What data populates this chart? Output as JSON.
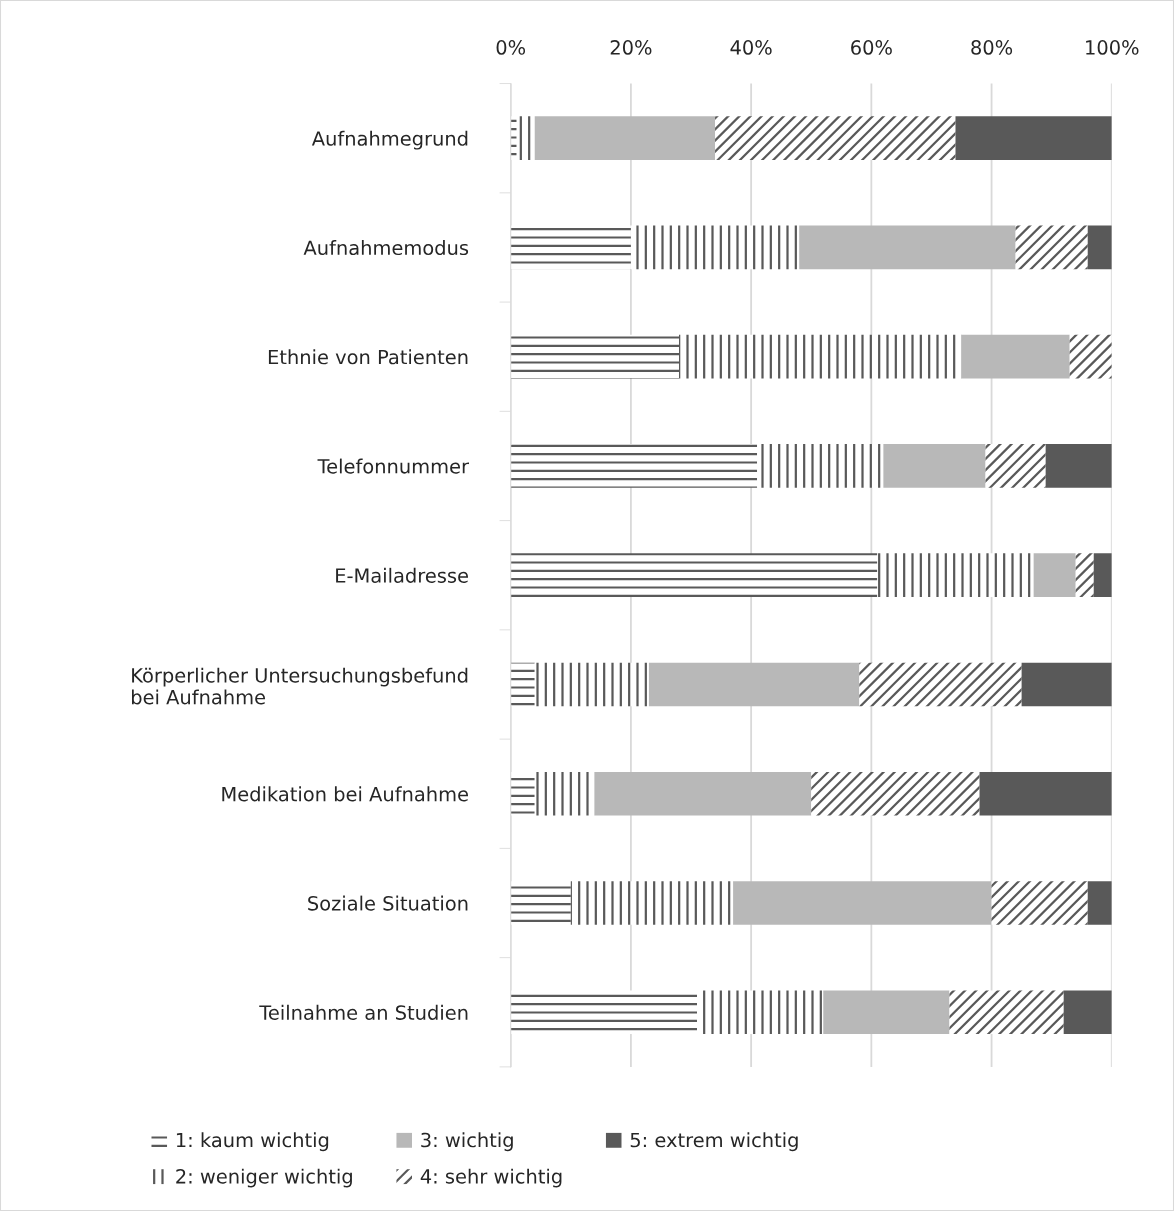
{
  "chart_data": {
    "type": "bar",
    "orientation": "horizontal",
    "stacked": true,
    "categories": [
      "Aufnahmegrund",
      "Aufnahmemodus",
      "Ethnie von Patienten",
      "Telefonnummer",
      "E-Mailadresse",
      "Körperlicher Untersuchungsbefund\nbei Aufnahme",
      "Medikation bei Aufnahme",
      "Soziale Situation",
      "Teilnahme an Studien"
    ],
    "series": [
      {
        "name": "1: kaum wichtig",
        "color": "#595959",
        "values": [
          1,
          20,
          28,
          41,
          61,
          4,
          4,
          10,
          31
        ]
      },
      {
        "name": "2: weniger wichtig",
        "color": "#595959",
        "values": [
          3,
          28,
          47,
          21,
          26,
          19,
          10,
          27,
          21
        ]
      },
      {
        "name": "3: wichtig",
        "color": "#b8b8b8",
        "values": [
          30,
          36,
          18,
          17,
          7,
          35,
          36,
          43,
          21
        ]
      },
      {
        "name": "4: sehr wichtig",
        "color": "#595959",
        "values": [
          40,
          12,
          7,
          10,
          3,
          27,
          28,
          16,
          19
        ]
      },
      {
        "name": "5: extrem wichtig",
        "color": "#595959",
        "values": [
          26,
          4,
          0,
          11,
          3,
          15,
          22,
          4,
          8
        ]
      }
    ],
    "xlim": [
      0,
      100
    ],
    "xticks": [
      {
        "value": 0,
        "label": "0%"
      },
      {
        "value": 20,
        "label": "20%"
      },
      {
        "value": 40,
        "label": "40%"
      },
      {
        "value": 60,
        "label": "60%"
      },
      {
        "value": 80,
        "label": "80%"
      },
      {
        "value": 100,
        "label": "100%"
      }
    ],
    "grid": "x",
    "legend": "bottom"
  }
}
